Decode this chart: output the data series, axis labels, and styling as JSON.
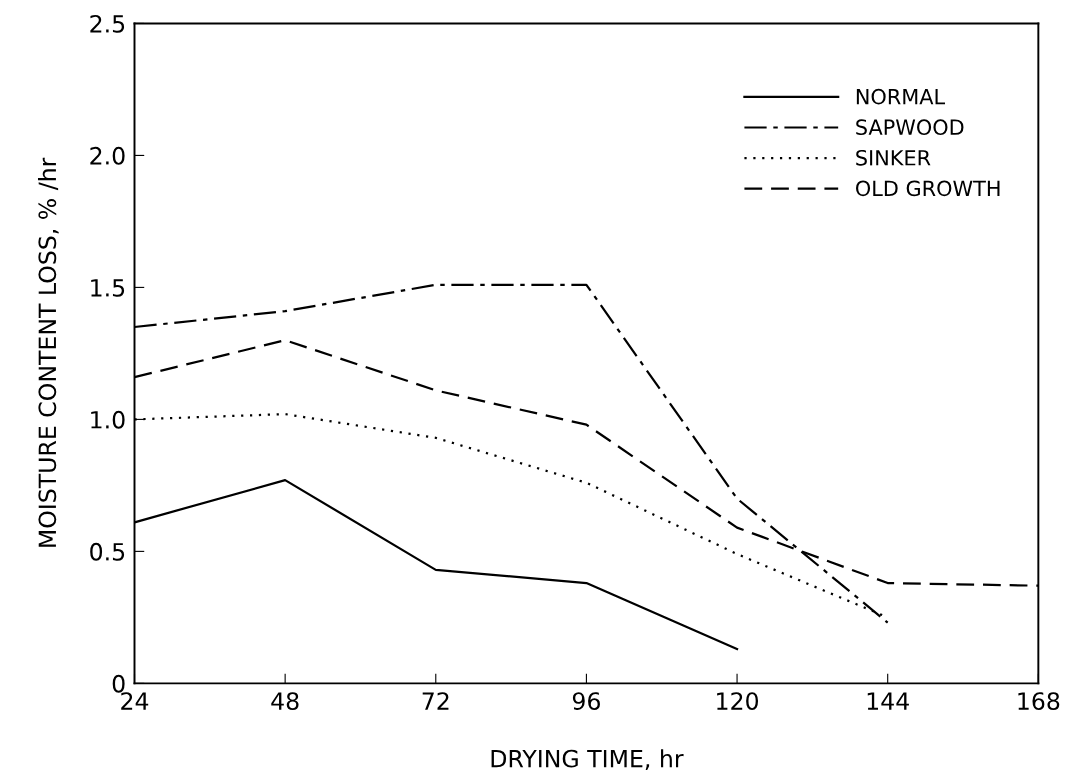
{
  "chart_data": {
    "type": "line",
    "xlabel": "DRYING TIME, hr",
    "ylabel": "MOISTURE CONTENT LOSS, % /hr",
    "x": [
      24,
      48,
      72,
      96,
      120,
      144,
      168
    ],
    "xlim": [
      24,
      168
    ],
    "xticks": [
      24,
      48,
      72,
      96,
      120,
      144,
      168
    ],
    "ylim": [
      0,
      2.5
    ],
    "yticks": [
      {
        "value": 0,
        "label": "0"
      },
      0.5,
      {
        "value": 1,
        "label": "1.0"
      },
      1.5,
      {
        "value": 2,
        "label": "2.0"
      },
      2.5
    ],
    "grid": false,
    "legend": "top right",
    "series": [
      {
        "name": "NORMAL",
        "color": "#000000",
        "line_style": "solid",
        "values": [
          0.61,
          0.77,
          0.43,
          0.38,
          0.13,
          null,
          null
        ]
      },
      {
        "name": "SAPWOOD",
        "color": "#000000",
        "line_style": "dashdot",
        "values": [
          1.35,
          1.41,
          1.51,
          1.51,
          0.7,
          0.23,
          null
        ]
      },
      {
        "name": "SINKER",
        "color": "#000000",
        "line_style": "dotted",
        "values": [
          1.0,
          1.02,
          0.93,
          0.76,
          0.49,
          0.25,
          null
        ]
      },
      {
        "name": "OLD GROWTH",
        "color": "#000000",
        "line_style": "dashed",
        "values": [
          1.16,
          1.3,
          1.11,
          0.98,
          0.59,
          0.38,
          0.37
        ]
      }
    ]
  }
}
